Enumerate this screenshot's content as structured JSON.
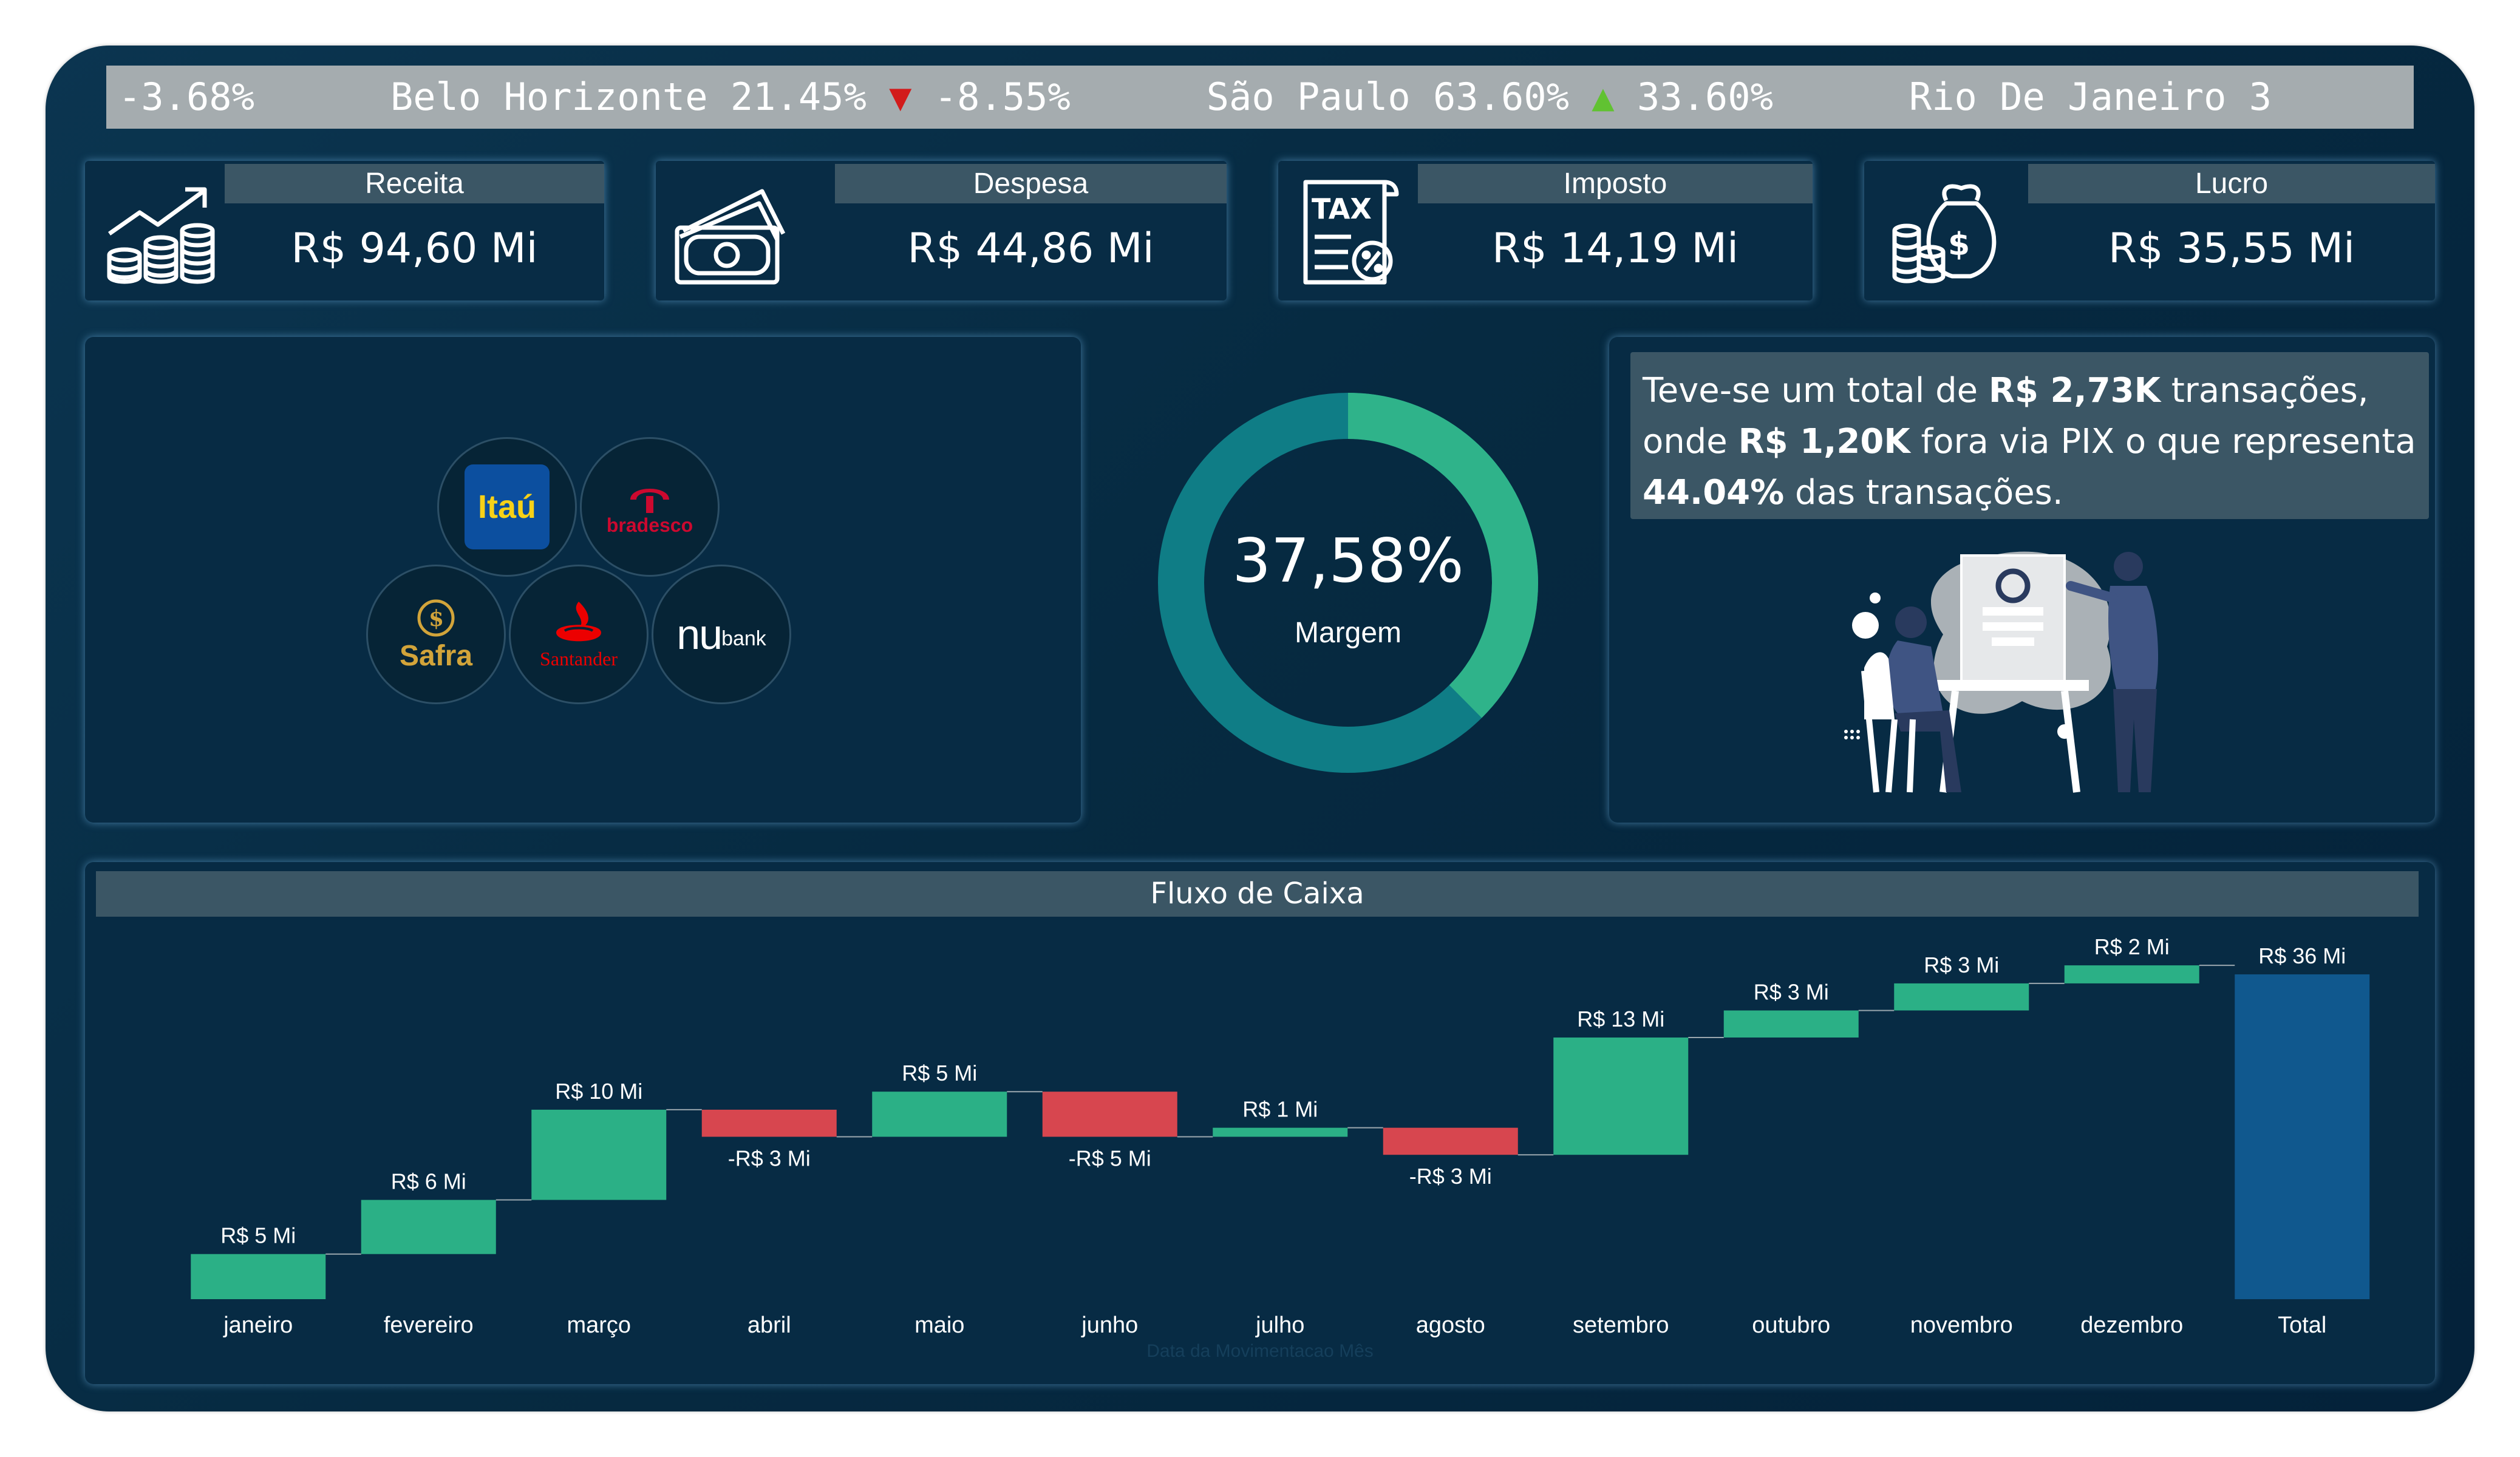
{
  "ticker": {
    "segments": [
      {
        "text": "-3.68%      ",
        "cls": ""
      },
      {
        "text": "Belo Horizonte 21.45% ",
        "cls": ""
      },
      {
        "text": "▼",
        "cls": "tk-down"
      },
      {
        "text": " -8.55%      ",
        "cls": ""
      },
      {
        "text": "São Paulo 63.60% ",
        "cls": ""
      },
      {
        "text": "▲",
        "cls": "tk-up"
      },
      {
        "text": " 33.60%      ",
        "cls": ""
      },
      {
        "text": "Rio De Janeiro 3",
        "cls": ""
      }
    ]
  },
  "kpis": [
    {
      "label": "Receita",
      "value": "R$ 94,60 Mi",
      "icon": "coins-growth-icon"
    },
    {
      "label": "Despesa",
      "value": "R$ 44,86 Mi",
      "icon": "banknotes-icon"
    },
    {
      "label": "Imposto",
      "value": "R$ 14,19 Mi",
      "icon": "tax-document-icon"
    },
    {
      "label": "Lucro",
      "value": "R$ 35,55 Mi",
      "icon": "money-bag-icon"
    }
  ],
  "banks": [
    {
      "name": "Itaú",
      "color": "#f7d117",
      "bg": "#0c4f9f"
    },
    {
      "name": "bradesco",
      "color": "#cc092f"
    },
    {
      "name": "Safra",
      "color": "#d2a43a"
    },
    {
      "name": "Santander",
      "color": "#ec0000"
    },
    {
      "name": "bank",
      "prefix": "nu",
      "color": "#ffffff"
    }
  ],
  "gauge": {
    "value_text": "37,58%",
    "label": "Margem",
    "fraction": 0.3758,
    "fill_color": "#2fb38a",
    "track_color": "#0f7d86"
  },
  "insight": {
    "t1": "Teve-se um total de ",
    "b1": "R$ 2,73K",
    "t2": " transações, onde ",
    "b2": "R$ 1,20K",
    "t3": " fora via PIX o que representa ",
    "b3": "44.04%",
    "t4": " das transações."
  },
  "chart_data": {
    "type": "waterfall",
    "title": "Fluxo de Caixa",
    "xlabel": "Data da Movimentacao Mês",
    "ylabel": "",
    "categories": [
      "janeiro",
      "fevereiro",
      "março",
      "abril",
      "maio",
      "junho",
      "julho",
      "agosto",
      "setembro",
      "outubro",
      "novembro",
      "dezembro",
      "Total"
    ],
    "values": [
      5,
      6,
      10,
      -3,
      5,
      -5,
      1,
      -3,
      13,
      3,
      3,
      2,
      36
    ],
    "labels": [
      "R$ 5 Mi",
      "R$ 6 Mi",
      "R$ 10 Mi",
      "-R$ 3 Mi",
      "R$ 5 Mi",
      "-R$ 5 Mi",
      "R$ 1 Mi",
      "-R$ 3 Mi",
      "R$ 13 Mi",
      "R$ 3 Mi",
      "R$ 3 Mi",
      "R$ 2 Mi",
      "R$ 36 Mi"
    ],
    "colors": {
      "increase": "#2bb086",
      "decrease": "#d7464f",
      "total": "#10588e"
    },
    "ylim": [
      0,
      36
    ]
  }
}
